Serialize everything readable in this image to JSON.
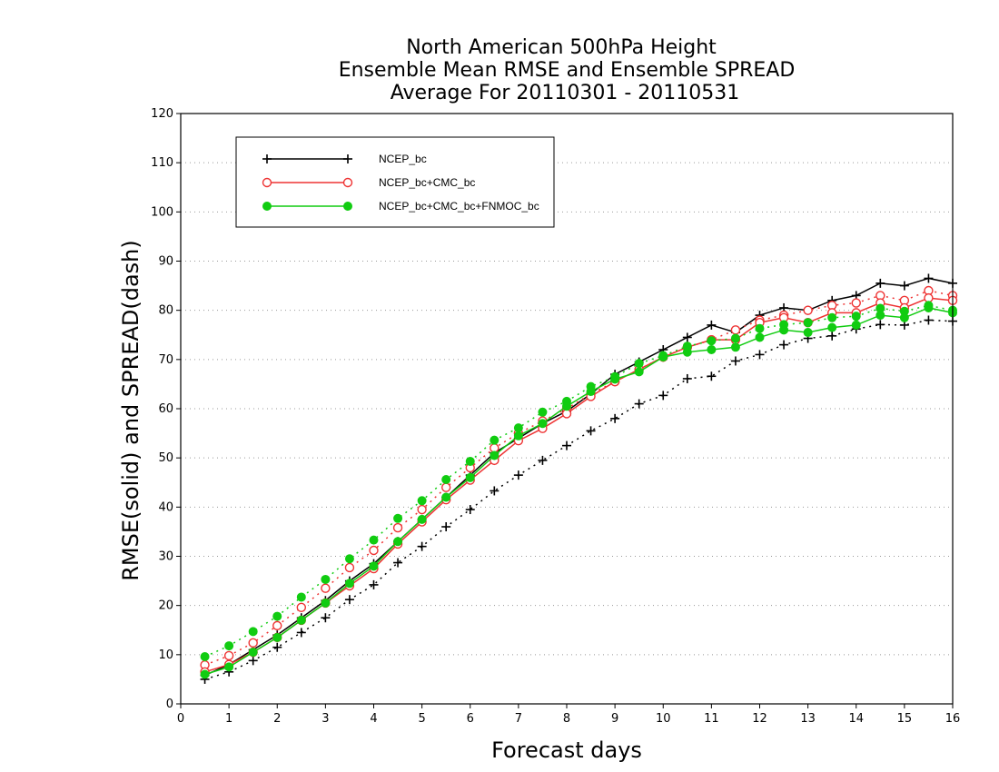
{
  "chart_data": {
    "type": "line",
    "title": [
      "North American 500hPa Height",
      "Ensemble Mean RMSE and Ensemble SPREAD",
      "Average For 20110301 - 20110531"
    ],
    "xlabel": "Forecast days",
    "ylabel": "RMSE(solid) and SPREAD(dash)",
    "xlim": [
      0,
      16
    ],
    "ylim": [
      0,
      120
    ],
    "xticks": [
      "0",
      "1",
      "2",
      "3",
      "4",
      "5",
      "6",
      "7",
      "8",
      "9",
      "10",
      "11",
      "12",
      "13",
      "14",
      "15",
      "16"
    ],
    "yticks": [
      "0",
      "10",
      "20",
      "30",
      "40",
      "50",
      "60",
      "70",
      "80",
      "90",
      "100",
      "110",
      "120"
    ],
    "grid": "horizontal dotted",
    "legend_position": "top-left",
    "x": [
      0.5,
      1,
      1.5,
      2,
      2.5,
      3,
      3.5,
      4,
      4.5,
      5,
      5.5,
      6,
      6.5,
      7,
      7.5,
      8,
      8.5,
      9,
      9.5,
      10,
      10.5,
      11,
      11.5,
      12,
      12.5,
      13,
      13.5,
      14,
      14.5,
      15,
      15.5,
      16
    ],
    "series": [
      {
        "name": "NCEP_bc",
        "color": "#000000",
        "marker": "plus",
        "rmse": [
          5.8,
          8,
          11,
          14,
          17.5,
          21,
          25,
          28.5,
          33,
          37.5,
          42,
          46.5,
          51,
          54,
          57,
          59.5,
          63,
          67,
          69.5,
          72,
          74.5,
          77,
          75.5,
          79,
          80.5,
          80,
          82,
          83,
          85.5,
          85,
          86.5,
          85.5
        ],
        "spread": [
          5,
          6.5,
          8.8,
          11.5,
          14.5,
          17.5,
          21.2,
          24.2,
          28.7,
          32,
          36,
          39.5,
          43.3,
          46.5,
          49.5,
          52.5,
          55.5,
          58,
          61,
          62.7,
          66.1,
          66.6,
          69.7,
          71,
          73,
          74.3,
          74.8,
          76.2,
          77.1,
          77,
          78,
          77.8
        ]
      },
      {
        "name": "NCEP_bc+CMC_bc",
        "color": "#ee3333",
        "marker": "open-circle",
        "rmse": [
          6.5,
          8,
          10.5,
          13.5,
          17,
          20.5,
          24,
          27.5,
          32.5,
          37,
          41.5,
          45.5,
          49.5,
          53.5,
          56,
          59,
          62.5,
          65.5,
          68,
          70.5,
          72.5,
          74,
          74,
          77.5,
          78.5,
          77.5,
          79.5,
          79.5,
          81.5,
          80.5,
          82.5,
          82
        ],
        "spread": [
          7.9,
          9.8,
          12.4,
          15.9,
          19.6,
          23.5,
          27.7,
          31.2,
          35.8,
          39.5,
          44,
          48,
          52,
          55,
          57.5,
          60,
          63,
          65.5,
          68,
          70.5,
          72.5,
          74,
          76,
          78,
          79,
          80,
          81,
          81.5,
          83,
          82,
          84,
          83
        ]
      },
      {
        "name": "NCEP_bc+CMC_bc+FNMOC_bc",
        "color": "#11cc11",
        "marker": "filled-circle",
        "rmse": [
          6,
          7.5,
          10.5,
          13.5,
          17,
          20.5,
          24.5,
          28,
          33,
          37.5,
          42,
          46,
          50.5,
          54.5,
          57,
          60.5,
          63.5,
          66,
          67.5,
          70.5,
          71.5,
          72,
          72.5,
          74.5,
          76,
          75.5,
          76.5,
          77,
          79,
          78.5,
          80.5,
          79.5
        ],
        "spread": [
          9.6,
          11.8,
          14.7,
          17.8,
          21.7,
          25.3,
          29.5,
          33.3,
          37.7,
          41.3,
          45.6,
          49.3,
          53.6,
          56.1,
          59.3,
          61.5,
          64.5,
          66.5,
          69.2,
          70.8,
          72.7,
          73.8,
          74.3,
          76.3,
          77.1,
          77.5,
          78.5,
          78.8,
          80.4,
          79.8,
          81,
          80
        ]
      }
    ]
  }
}
